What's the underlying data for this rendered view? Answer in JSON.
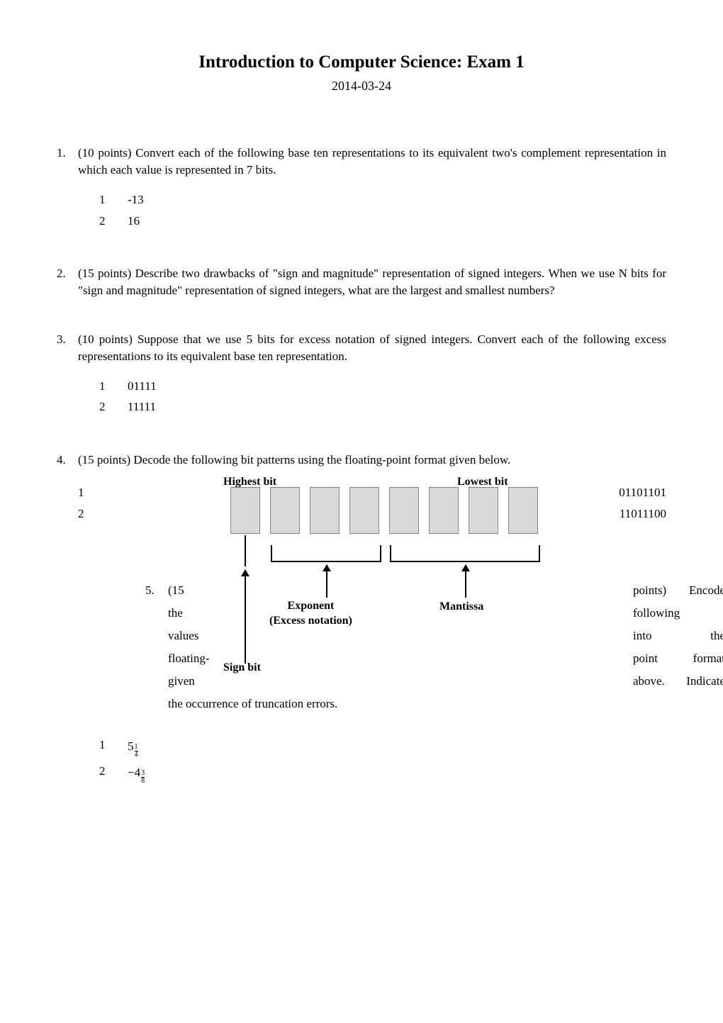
{
  "title": "Introduction to Computer Science: Exam 1",
  "date": "2014-03-24",
  "colors": {
    "text": "#000000",
    "background": "#ffffff",
    "bit_fill": "#d9d9d9",
    "bit_border": "#808080"
  },
  "q1": {
    "num": "1.",
    "text": "(10 points) Convert each of the following base ten representations to its equivalent two's complement representation in which each value is represented in 7 bits.",
    "items": [
      {
        "n": "1",
        "v": "-13"
      },
      {
        "n": "2",
        "v": "16"
      }
    ]
  },
  "q2": {
    "num": "2.",
    "text": "(15 points) Describe two drawbacks of \"sign and magnitude\" representation of signed integers. When we use N bits for \"sign and magnitude\" representation of signed integers, what are the largest and smallest numbers?"
  },
  "q3": {
    "num": "3.",
    "text": "(10 points) Suppose that we use 5 bits for excess notation of signed integers. Convert each of the following excess representations to its equivalent base ten representation.",
    "items": [
      {
        "n": "1",
        "v": "01111"
      },
      {
        "n": "2",
        "v": "11111"
      }
    ]
  },
  "q4": {
    "num": "4.",
    "text": "(15 points) Decode the following bit patterns using the floating-point format given below.",
    "items": [
      {
        "n": "1",
        "v": "01101101"
      },
      {
        "n": "2",
        "v": "11011100"
      }
    ],
    "diagram": {
      "highest_label": "Highest bit",
      "lowest_label": "Lowest bit",
      "sign_label": "Sign bit",
      "exponent_label": "Exponent",
      "exponent_sub": "(Excess notation)",
      "mantissa_label": "Mantissa",
      "bit_count": 8,
      "sign_bits": 1,
      "exponent_bits": 3,
      "mantissa_bits": 4
    }
  },
  "q5": {
    "num": "5.",
    "left": [
      "(15",
      "the",
      "values",
      "floating-",
      "given"
    ],
    "right": [
      [
        "points)",
        "Encode"
      ],
      [
        "following",
        ""
      ],
      [
        "into",
        "the"
      ],
      [
        "point",
        "format"
      ],
      [
        "above.",
        "Indicate"
      ]
    ],
    "tail": "the occurrence of truncation errors.",
    "items": [
      {
        "n": "1",
        "whole": "5",
        "num": "1",
        "den": "4",
        "neg": false
      },
      {
        "n": "2",
        "whole": "4",
        "num": "3",
        "den": "8",
        "neg": true
      }
    ]
  }
}
